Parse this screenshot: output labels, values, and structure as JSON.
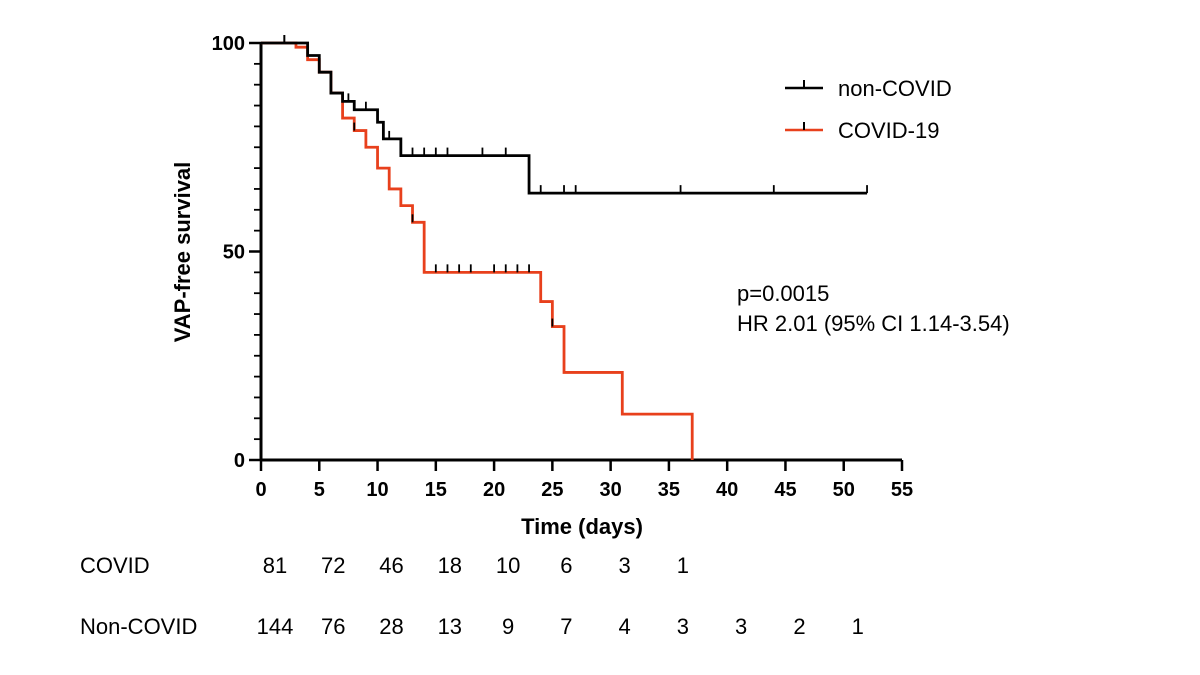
{
  "chart_data": {
    "type": "line",
    "subtype": "kaplan-meier",
    "title": "",
    "xlabel": "Time (days)",
    "ylabel": "VAP-free survival",
    "xlim": [
      0,
      55
    ],
    "ylim": [
      0,
      100
    ],
    "x_ticks": [
      "0",
      "5",
      "10",
      "15",
      "20",
      "25",
      "30",
      "35",
      "40",
      "45",
      "50",
      "55"
    ],
    "y_ticks": [
      "0",
      "50",
      "100"
    ],
    "grid": false,
    "legend_position": "top-right",
    "legend": [
      "non-COVID",
      "COVID-19"
    ],
    "series": [
      {
        "name": "non-COVID",
        "color": "#000000",
        "steps": [
          [
            0,
            100
          ],
          [
            4,
            97
          ],
          [
            5,
            93
          ],
          [
            6,
            88
          ],
          [
            7,
            86
          ],
          [
            8,
            84
          ],
          [
            10,
            81
          ],
          [
            10.5,
            77
          ],
          [
            12,
            73
          ],
          [
            23,
            64
          ],
          [
            52,
            64
          ]
        ],
        "censored": [
          [
            2,
            100
          ],
          [
            7.5,
            86
          ],
          [
            9,
            84
          ],
          [
            11,
            77
          ],
          [
            13,
            73
          ],
          [
            14,
            73
          ],
          [
            15,
            73
          ],
          [
            16,
            73
          ],
          [
            19,
            73
          ],
          [
            21,
            73
          ],
          [
            24,
            64
          ],
          [
            26,
            64
          ],
          [
            27,
            64
          ],
          [
            36,
            64
          ],
          [
            44,
            64
          ],
          [
            52,
            64
          ]
        ]
      },
      {
        "name": "COVID-19",
        "color": "#e8401c",
        "steps": [
          [
            0,
            100
          ],
          [
            3,
            99
          ],
          [
            4,
            96
          ],
          [
            5,
            93
          ],
          [
            6,
            88
          ],
          [
            7,
            82
          ],
          [
            8,
            79
          ],
          [
            9,
            75
          ],
          [
            10,
            70
          ],
          [
            11,
            65
          ],
          [
            12,
            61
          ],
          [
            13,
            57
          ],
          [
            14,
            52
          ],
          [
            14,
            45
          ],
          [
            24,
            45
          ],
          [
            24,
            38
          ],
          [
            25,
            32
          ],
          [
            26,
            21
          ],
          [
            31,
            11
          ],
          [
            37,
            0
          ]
        ],
        "censored": [
          [
            2,
            100
          ],
          [
            8,
            79
          ],
          [
            13,
            57
          ],
          [
            15,
            45
          ],
          [
            16,
            45
          ],
          [
            17,
            45
          ],
          [
            18,
            45
          ],
          [
            20,
            45
          ],
          [
            21,
            45
          ],
          [
            22,
            45
          ],
          [
            23,
            45
          ],
          [
            25,
            32
          ]
        ]
      }
    ],
    "annotations": [
      "p=0.0015",
      "HR 2.01 (95% CI 1.14-3.54)"
    ],
    "risk_table": {
      "rows": [
        {
          "label": "COVID",
          "values": [
            "81",
            "72",
            "46",
            "18",
            "10",
            "6",
            "3",
            "1"
          ]
        },
        {
          "label": "Non-COVID",
          "values": [
            "144",
            "76",
            "28",
            "13",
            "9",
            "7",
            "4",
            "3",
            "3",
            "2",
            "1"
          ]
        }
      ]
    }
  }
}
